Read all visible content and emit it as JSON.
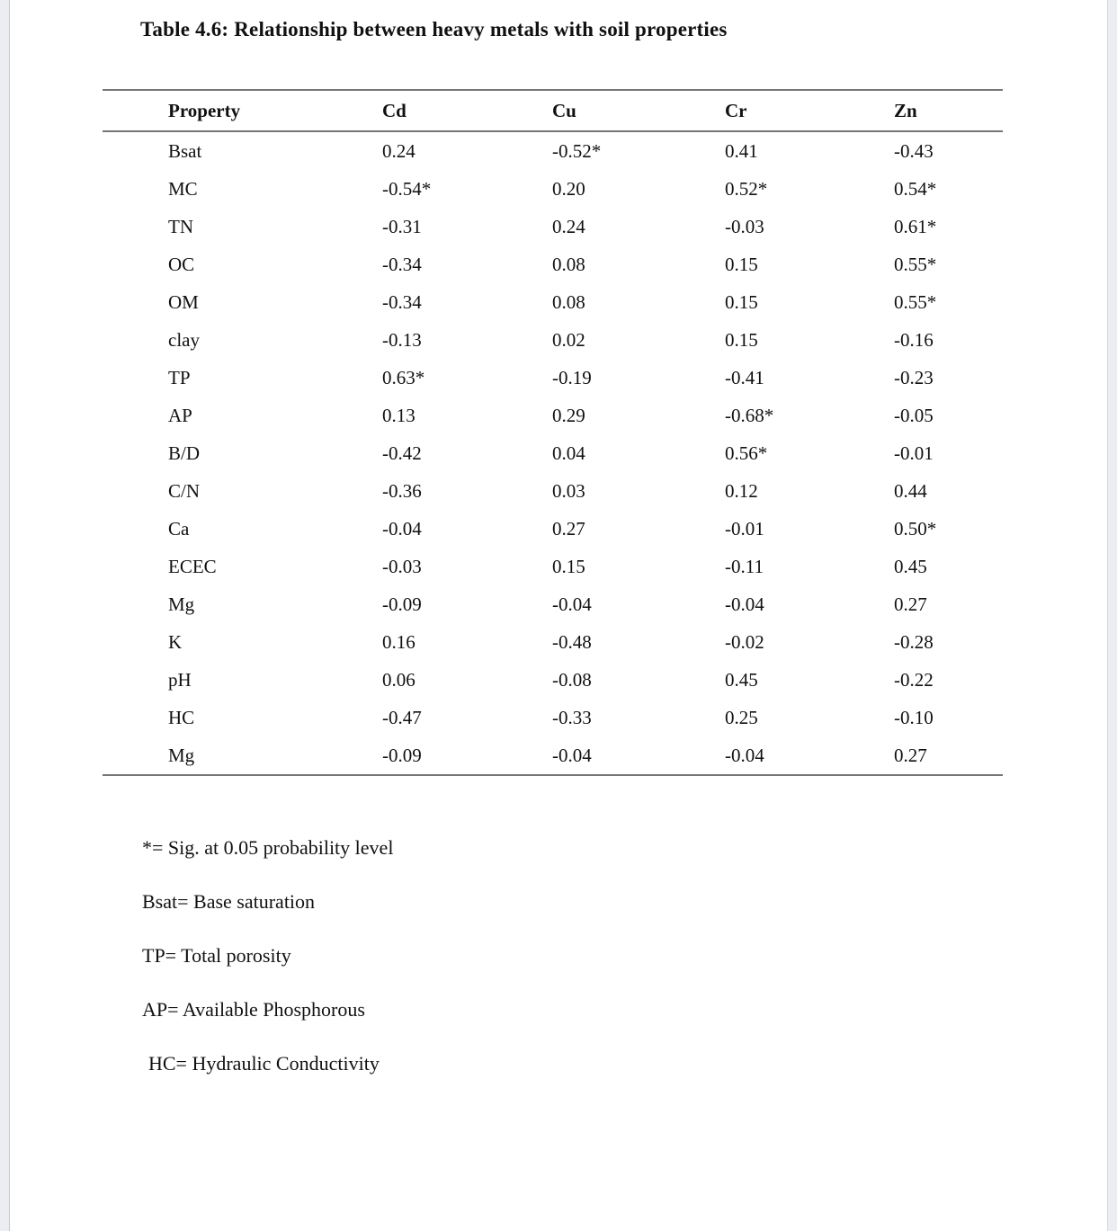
{
  "document": {
    "title": "Table 4.6: Relationship between heavy metals with soil properties",
    "footnotes": [
      "*= Sig. at 0.05 probability level",
      "Bsat= Base saturation",
      "TP= Total porosity",
      "AP= Available Phosphorous",
      "HC= Hydraulic Conductivity"
    ]
  },
  "chart_data": {
    "type": "table",
    "title": "Table 4.6: Relationship between heavy metals with soil properties",
    "columns": [
      "Property",
      "Cd",
      "Cu",
      "Cr",
      "Zn"
    ],
    "rows": [
      [
        "Bsat",
        "0.24",
        "-0.52*",
        "0.41",
        "-0.43"
      ],
      [
        "MC",
        "-0.54*",
        "0.20",
        "0.52*",
        "0.54*"
      ],
      [
        "TN",
        "-0.31",
        "0.24",
        "-0.03",
        "0.61*"
      ],
      [
        "OC",
        "-0.34",
        "0.08",
        "0.15",
        "0.55*"
      ],
      [
        "OM",
        "-0.34",
        "0.08",
        "0.15",
        "0.55*"
      ],
      [
        "clay",
        "-0.13",
        "0.02",
        "0.15",
        "-0.16"
      ],
      [
        "TP",
        "0.63*",
        "-0.19",
        "-0.41",
        "-0.23"
      ],
      [
        "AP",
        "0.13",
        "0.29",
        "-0.68*",
        "-0.05"
      ],
      [
        "B/D",
        "-0.42",
        "0.04",
        "0.56*",
        "-0.01"
      ],
      [
        "C/N",
        "-0.36",
        "0.03",
        "0.12",
        "0.44"
      ],
      [
        "Ca",
        "-0.04",
        "0.27",
        "-0.01",
        "0.50*"
      ],
      [
        "ECEC",
        "-0.03",
        "0.15",
        "-0.11",
        "0.45"
      ],
      [
        "Mg",
        "-0.09",
        "-0.04",
        "-0.04",
        "0.27"
      ],
      [
        "K",
        "0.16",
        "-0.48",
        "-0.02",
        "-0.28"
      ],
      [
        "pH",
        "0.06",
        "-0.08",
        "0.45",
        "-0.22"
      ],
      [
        "HC",
        "-0.47",
        "-0.33",
        "0.25",
        "-0.10"
      ],
      [
        "Mg",
        "-0.09",
        "-0.04",
        "-0.04",
        "0.27"
      ]
    ]
  }
}
